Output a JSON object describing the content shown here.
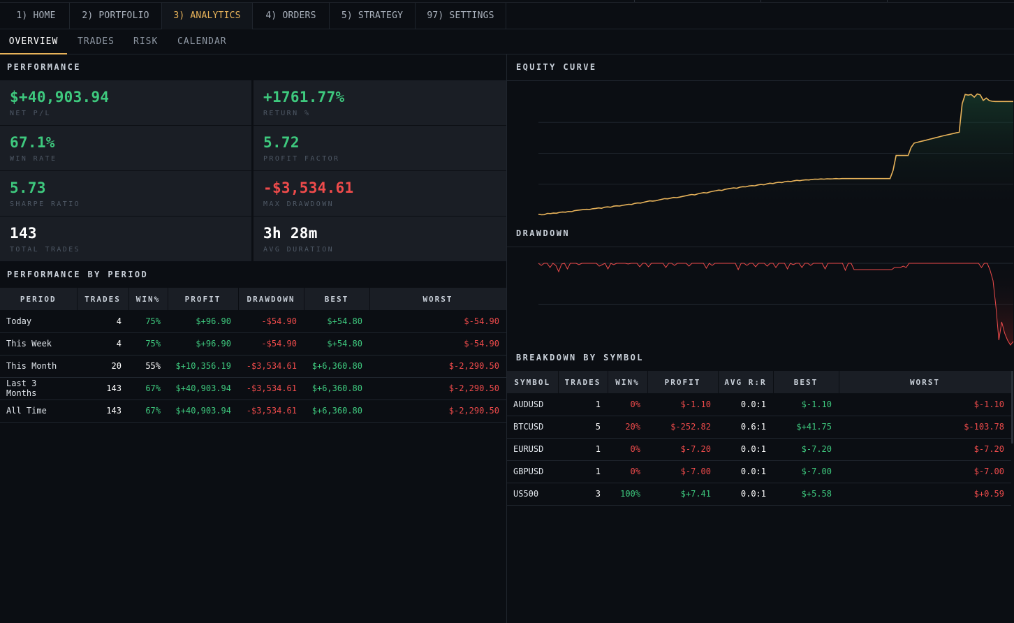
{
  "nav": {
    "tabs": [
      {
        "label": "1) HOME"
      },
      {
        "label": "2) PORTFOLIO"
      },
      {
        "label": "3) ANALYTICS"
      },
      {
        "label": "4) ORDERS"
      },
      {
        "label": "5) STRATEGY"
      },
      {
        "label": "97) SETTINGS"
      }
    ],
    "active_tab": "3) ANALYTICS"
  },
  "subnav": {
    "tabs": [
      {
        "label": "OVERVIEW"
      },
      {
        "label": "TRADES"
      },
      {
        "label": "RISK"
      },
      {
        "label": "CALENDAR"
      }
    ],
    "active_tab": "OVERVIEW"
  },
  "performance": {
    "title": "PERFORMANCE",
    "metrics": [
      {
        "value": "$+40,903.94",
        "label": "NET P/L",
        "tone": "green"
      },
      {
        "value": "+1761.77%",
        "label": "RETURN %",
        "tone": "green"
      },
      {
        "value": "67.1%",
        "label": "WIN RATE",
        "tone": "green"
      },
      {
        "value": "5.72",
        "label": "PROFIT FACTOR",
        "tone": "green"
      },
      {
        "value": "5.73",
        "label": "SHARPE RATIO",
        "tone": "green"
      },
      {
        "value": "-$3,534.61",
        "label": "MAX DRAWDOWN",
        "tone": "red"
      },
      {
        "value": "143",
        "label": "TOTAL TRADES",
        "tone": "white"
      },
      {
        "value": "3h 28m",
        "label": "AVG DURATION",
        "tone": "white"
      }
    ]
  },
  "period_table": {
    "title": "PERFORMANCE BY PERIOD",
    "headers": [
      "PERIOD",
      "TRADES",
      "WIN%",
      "PROFIT",
      "DRAWDOWN",
      "BEST",
      "WORST"
    ],
    "rows": [
      {
        "period": "Today",
        "trades": "4",
        "win": "75%",
        "profit": "$+96.90",
        "drawdown": "-$54.90",
        "best": "$+54.80",
        "worst": "$-54.90"
      },
      {
        "period": "This Week",
        "trades": "4",
        "win": "75%",
        "profit": "$+96.90",
        "drawdown": "-$54.90",
        "best": "$+54.80",
        "worst": "$-54.90"
      },
      {
        "period": "This Month",
        "trades": "20",
        "win": "55%",
        "profit": "$+10,356.19",
        "drawdown": "-$3,534.61",
        "best": "$+6,360.80",
        "worst": "$-2,290.50"
      },
      {
        "period": "Last 3 Months",
        "trades": "143",
        "win": "67%",
        "profit": "$+40,903.94",
        "drawdown": "-$3,534.61",
        "best": "$+6,360.80",
        "worst": "$-2,290.50"
      },
      {
        "period": "All Time",
        "trades": "143",
        "win": "67%",
        "profit": "$+40,903.94",
        "drawdown": "-$3,534.61",
        "best": "$+6,360.80",
        "worst": "$-2,290.50"
      }
    ]
  },
  "equity_curve": {
    "title": "EQUITY CURVE",
    "line_color": "#e8b35a",
    "chart_data": {
      "type": "line",
      "title": "EQUITY CURVE",
      "grid": true,
      "values": [
        0.5,
        0.2,
        0.3,
        1.0,
        0.9,
        1.2,
        1.1,
        1.6,
        1.8,
        1.7,
        2.1,
        2.0,
        2.6,
        2.8,
        3.0,
        3.2,
        3.4,
        3.3,
        3.7,
        3.9,
        4.2,
        4.0,
        4.6,
        4.8,
        4.6,
        5.2,
        5.4,
        5.3,
        5.7,
        6.0,
        6.3,
        6.2,
        6.8,
        7.1,
        7.0,
        7.5,
        7.9,
        8.3,
        8.2,
        8.4,
        8.8,
        9.2,
        9.6,
        9.5,
        9.9,
        10.3,
        10.2,
        10.5,
        10.9,
        11.3,
        11.7,
        12.0,
        11.8,
        12.4,
        12.8,
        13.1,
        12.9,
        13.5,
        13.9,
        14.2,
        14.6,
        14.4,
        15.0,
        15.3,
        15.6,
        15.9,
        15.7,
        16.3,
        16.6,
        16.5,
        17.0,
        17.2,
        17.1,
        17.6,
        17.9,
        17.7,
        18.2,
        18.6,
        18.4,
        18.9,
        19.2,
        19.0,
        19.5,
        19.7,
        19.6,
        20.0,
        20.3,
        20.1,
        20.4,
        20.6,
        20.5,
        20.8,
        21.0,
        20.9,
        21.1,
        21.0,
        21.2,
        21.1,
        21.2,
        21.3,
        21.2,
        21.3,
        21.3,
        21.3,
        21.3,
        21.3,
        21.3,
        21.3,
        21.3,
        21.3,
        21.3,
        21.3,
        21.3,
        21.3,
        21.3,
        21.3,
        21.3,
        21.3,
        26.0,
        34.8,
        34.8,
        34.8,
        34.8,
        34.8,
        39.5,
        42.0,
        42.4,
        42.9,
        43.3,
        43.7,
        44.2,
        44.6,
        45.1,
        45.5,
        46.0,
        46.4,
        46.8,
        47.2,
        47.6,
        48.0,
        48.4,
        65.0,
        70.4,
        70.0,
        70.4,
        68.8,
        70.7,
        70.1,
        66.9,
        68.3,
        66.8,
        66.4,
        66.3,
        66.3,
        66.3,
        66.3,
        66.3,
        66.3,
        66.3
      ]
    }
  },
  "drawdown": {
    "title": "DRAWDOWN",
    "line_color": "#ef4b4b",
    "chart_data": {
      "type": "area",
      "title": "DRAWDOWN",
      "grid": true,
      "values": [
        0,
        -3,
        0,
        0,
        -6,
        0,
        -3,
        -12,
        -1,
        0,
        -8,
        0,
        0,
        0,
        -2,
        0,
        0,
        0,
        0,
        0,
        0,
        -4,
        -2,
        0,
        -8,
        0,
        -2,
        0,
        0,
        0,
        0,
        -1,
        0,
        0,
        0,
        -5,
        0,
        0,
        -5,
        0,
        0,
        0,
        0,
        0,
        -6,
        0,
        0,
        -3,
        0,
        0,
        0,
        0,
        -4,
        0,
        0,
        0,
        0,
        0,
        -7,
        0,
        -3,
        0,
        0,
        0,
        0,
        0,
        0,
        0,
        0,
        -9,
        0,
        0,
        -3,
        0,
        0,
        -5,
        0,
        0,
        0,
        -4,
        0,
        0,
        -6,
        0,
        0,
        0,
        -8,
        0,
        -2,
        0,
        0,
        -6,
        0,
        0,
        -3,
        0,
        0,
        0,
        0,
        -8,
        0,
        0,
        0,
        0,
        0,
        0,
        -10,
        0,
        0,
        -9,
        -9,
        -9,
        -9,
        -9,
        -9,
        -9,
        -9,
        -9,
        -9,
        -9,
        -9,
        -9,
        -9,
        -6,
        -6,
        -6,
        -4,
        -6,
        0,
        0,
        0,
        0,
        0,
        0,
        0,
        0,
        0,
        0,
        0,
        0,
        0,
        0,
        0,
        0,
        0,
        0,
        0,
        0,
        0,
        0,
        0,
        0,
        0,
        -6,
        0,
        0,
        -10,
        -25,
        -62,
        -110,
        -84,
        -100,
        -110,
        -117,
        -112
      ]
    }
  },
  "symbol_table": {
    "title": "BREAKDOWN BY SYMBOL",
    "headers": [
      "SYMBOL",
      "TRADES",
      "WIN%",
      "PROFIT",
      "AVG R:R",
      "BEST",
      "WORST"
    ],
    "rows": [
      {
        "symbol": "AUDUSD",
        "trades": "1",
        "win": "0%",
        "profit": "$-1.10",
        "rr": "0.0:1",
        "best": "$-1.10",
        "worst": "$-1.10",
        "win_tone": "red",
        "profit_tone": "red",
        "worst_tone": "red"
      },
      {
        "symbol": "BTCUSD",
        "trades": "5",
        "win": "20%",
        "profit": "$-252.82",
        "rr": "0.6:1",
        "best": "$+41.75",
        "worst": "$-103.78",
        "win_tone": "red",
        "profit_tone": "red",
        "worst_tone": "red"
      },
      {
        "symbol": "EURUSD",
        "trades": "1",
        "win": "0%",
        "profit": "$-7.20",
        "rr": "0.0:1",
        "best": "$-7.20",
        "worst": "$-7.20",
        "win_tone": "red",
        "profit_tone": "red",
        "worst_tone": "red"
      },
      {
        "symbol": "GBPUSD",
        "trades": "1",
        "win": "0%",
        "profit": "$-7.00",
        "rr": "0.0:1",
        "best": "$-7.00",
        "worst": "$-7.00",
        "win_tone": "red",
        "profit_tone": "red",
        "worst_tone": "red"
      },
      {
        "symbol": "US500",
        "trades": "3",
        "win": "100%",
        "profit": "$+7.41",
        "rr": "0.0:1",
        "best": "$+5.58",
        "worst": "$+0.59",
        "win_tone": "green",
        "profit_tone": "green",
        "worst_tone": "red"
      }
    ]
  }
}
